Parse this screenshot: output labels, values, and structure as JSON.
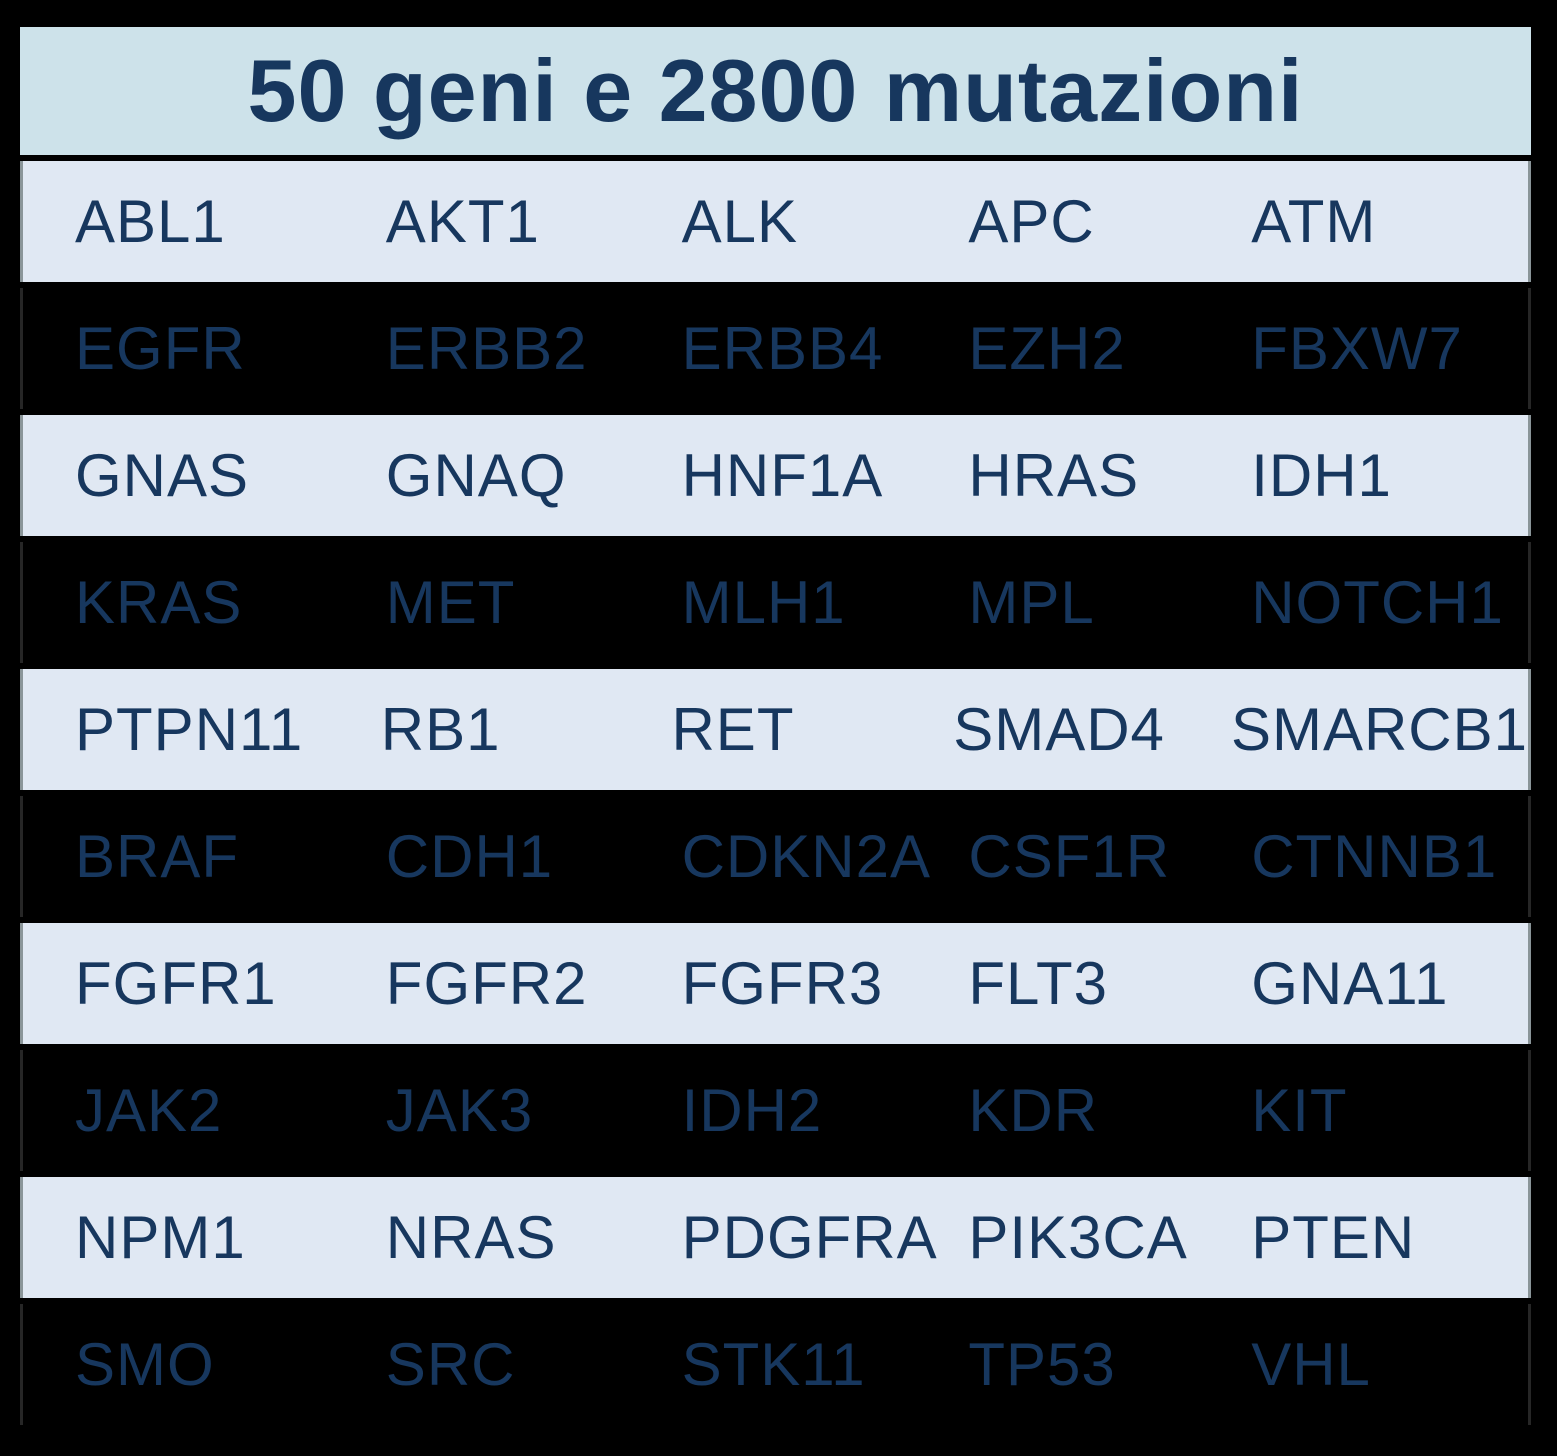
{
  "title": "50 geni e 2800 mutazioni",
  "colors": {
    "page_background": "#000000",
    "header_background": "#cde2ea",
    "light_row_background": "#e0e8f3",
    "dark_row_background": "#000000",
    "text_navy": "#17375e",
    "row_side_border_light": "#8a9599",
    "row_side_border_dark": "#262626"
  },
  "table": {
    "columns_per_row": 5,
    "rows": [
      {
        "variant": "light",
        "genes": [
          "ABL1",
          "AKT1",
          "ALK",
          "APC",
          "ATM"
        ]
      },
      {
        "variant": "dark",
        "genes": [
          "EGFR",
          "ERBB2",
          "ERBB4",
          "EZH2",
          "FBXW7"
        ]
      },
      {
        "variant": "light",
        "genes": [
          "GNAS",
          "GNAQ",
          "HNF1A",
          "HRAS",
          "IDH1"
        ]
      },
      {
        "variant": "dark",
        "genes": [
          "KRAS",
          "MET",
          "MLH1",
          "MPL",
          "NOTCH1"
        ]
      },
      {
        "variant": "light",
        "genes": [
          "PTPN11",
          "RB1",
          "RET",
          "SMAD4",
          "SMARCB1"
        ]
      },
      {
        "variant": "dark",
        "genes": [
          "BRAF",
          "CDH1",
          "CDKN2A",
          "CSF1R",
          "CTNNB1"
        ]
      },
      {
        "variant": "light",
        "genes": [
          "FGFR1",
          "FGFR2",
          "FGFR3",
          "FLT3",
          "GNA11"
        ]
      },
      {
        "variant": "dark",
        "genes": [
          "JAK2",
          "JAK3",
          "IDH2",
          "KDR",
          "KIT"
        ]
      },
      {
        "variant": "light",
        "genes": [
          "NPM1",
          "NRAS",
          "PDGFRA",
          "PIK3CA",
          "PTEN"
        ]
      },
      {
        "variant": "dark",
        "genes": [
          "SMO",
          "SRC",
          "STK11",
          "TP53",
          "VHL"
        ]
      }
    ]
  }
}
